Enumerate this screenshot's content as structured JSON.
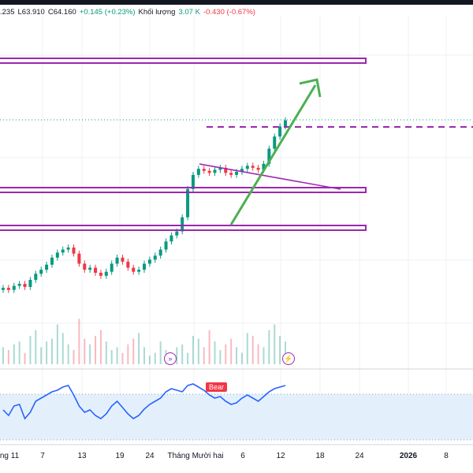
{
  "legend": {
    "close_prev": ".235",
    "low": "L63.910",
    "close": "C64.160",
    "change": "+0.145 (+0.23%)",
    "volume_label": "Khối lượng",
    "volume_value": "3.07 K",
    "volume_change": "-0.430 (-0.67%)"
  },
  "xaxis": {
    "labels": [
      "ng 11",
      "7",
      "13",
      "19",
      "24",
      "Tháng Mười hai",
      "6",
      "12",
      "18",
      "24",
      "2026",
      "8"
    ]
  },
  "indicator": {
    "signal_badge": "Bear"
  },
  "icons": {
    "fast_forward": "fast-forward-icon",
    "lightning": "lightning-icon"
  },
  "colors": {
    "up": "#089981",
    "down": "#f23645",
    "drawing": "#9c27b0",
    "arrow": "#4caf50",
    "rsi": "#2962ff"
  },
  "chart_data": {
    "type": "candlestick",
    "price_series": [
      10,
      8,
      12,
      14,
      11,
      18,
      24,
      28,
      33,
      40,
      45,
      48,
      50,
      44,
      34,
      28,
      30,
      25,
      22,
      26,
      34,
      40,
      36,
      30,
      26,
      28,
      34,
      38,
      42,
      48,
      56,
      62,
      66,
      80,
      108,
      122,
      128,
      126,
      124,
      127,
      129,
      124,
      122,
      125,
      128,
      131,
      129,
      127,
      133,
      148,
      160,
      170,
      176
    ],
    "volume_series": [
      6,
      5,
      7,
      8,
      4,
      10,
      12,
      6,
      8,
      9,
      14,
      11,
      7,
      5,
      16,
      9,
      7,
      10,
      12,
      8,
      5,
      6,
      4,
      7,
      9,
      11,
      6,
      3,
      4,
      8,
      5,
      4,
      6,
      7,
      4,
      10,
      9,
      6,
      12,
      8,
      5,
      7,
      9,
      6,
      4,
      11,
      10,
      7,
      6,
      12,
      14,
      10,
      8
    ],
    "rsi_series": [
      55,
      48,
      60,
      62,
      44,
      52,
      66,
      70,
      74,
      78,
      80,
      84,
      86,
      74,
      60,
      52,
      55,
      48,
      44,
      50,
      60,
      66,
      58,
      50,
      44,
      48,
      56,
      62,
      66,
      70,
      78,
      82,
      80,
      78,
      86,
      88,
      84,
      80,
      74,
      70,
      72,
      66,
      62,
      64,
      70,
      74,
      70,
      66,
      72,
      78,
      82,
      84,
      86
    ]
  }
}
